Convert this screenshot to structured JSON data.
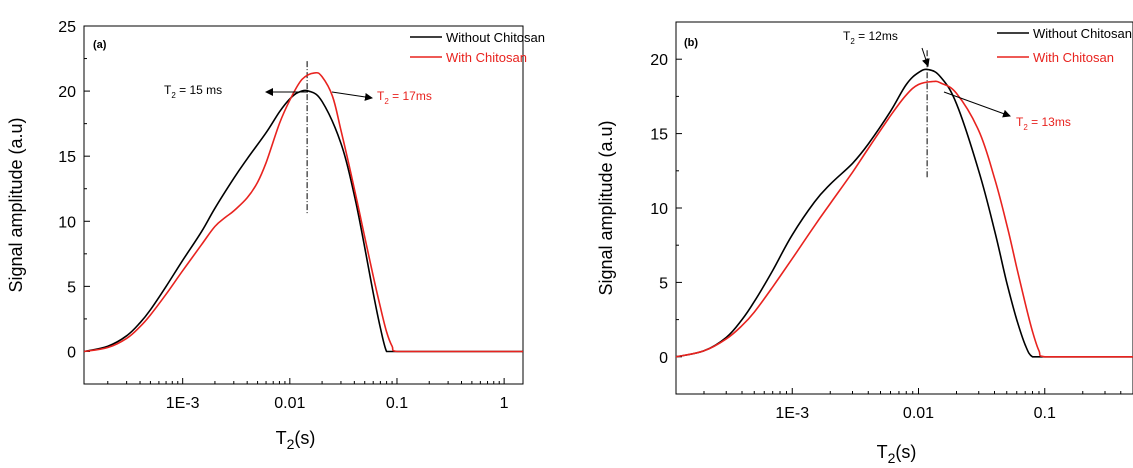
{
  "chart_data": [
    {
      "type": "line",
      "panel_label": "(a)",
      "xlabel": "T",
      "xlabel_sub": "2",
      "xlabel_suffix": "(s)",
      "ylabel": "Signal amplitude (a.u)",
      "x_scale": "log",
      "xlim": [
        0.00012,
        1.5
      ],
      "ylim": [
        -2.5,
        25
      ],
      "x_ticks": [
        {
          "value": 0.001,
          "label": "1E-3"
        },
        {
          "value": 0.01,
          "label": "0.01"
        },
        {
          "value": 0.1,
          "label": "0.1"
        },
        {
          "value": 1,
          "label": "1"
        }
      ],
      "y_ticks": [
        {
          "value": 0,
          "label": "0"
        },
        {
          "value": 5,
          "label": "5"
        },
        {
          "value": 10,
          "label": "10"
        },
        {
          "value": 15,
          "label": "15"
        },
        {
          "value": 20,
          "label": "20"
        },
        {
          "value": 25,
          "label": "25"
        }
      ],
      "legend_position": "top-right",
      "series": [
        {
          "name": "Without Chitosan",
          "color": "#000000",
          "x": [
            0.00012,
            0.0002,
            0.0003,
            0.0004,
            0.0005,
            0.0007,
            0.001,
            0.0015,
            0.002,
            0.003,
            0.004,
            0.006,
            0.008,
            0.01,
            0.012,
            0.015,
            0.02,
            0.03,
            0.04,
            0.05,
            0.06,
            0.07,
            0.08,
            0.09,
            0.1,
            0.2,
            0.5,
            1,
            1.5
          ],
          "y": [
            0,
            0.4,
            1.2,
            2.2,
            3.2,
            5.0,
            7.0,
            9.2,
            11.0,
            13.3,
            14.8,
            16.8,
            18.4,
            19.4,
            19.9,
            20.0,
            19.2,
            16.0,
            12.0,
            8.0,
            4.5,
            1.8,
            0.0,
            0.0,
            0.0,
            0.0,
            0.0,
            0.0,
            0.0
          ]
        },
        {
          "name": "With Chitosan",
          "color": "#e8231f",
          "x": [
            0.00012,
            0.0002,
            0.0003,
            0.0004,
            0.0005,
            0.0007,
            0.001,
            0.0015,
            0.002,
            0.0025,
            0.003,
            0.004,
            0.005,
            0.006,
            0.008,
            0.01,
            0.013,
            0.017,
            0.02,
            0.025,
            0.03,
            0.04,
            0.05,
            0.06,
            0.07,
            0.08,
            0.09,
            0.1,
            0.2,
            0.5,
            1,
            1.5
          ],
          "y": [
            0,
            0.3,
            1.0,
            1.9,
            2.8,
            4.4,
            6.2,
            8.2,
            9.6,
            10.3,
            10.8,
            11.8,
            13.0,
            14.5,
            17.5,
            19.3,
            20.9,
            21.4,
            21.1,
            19.6,
            17.0,
            12.5,
            8.8,
            5.8,
            3.4,
            1.5,
            0.4,
            0.0,
            0.0,
            0.0,
            0.0,
            0.0
          ]
        }
      ],
      "annotations": [
        {
          "text_main": "T",
          "sub": "2",
          "text_rest": " = 15 ms",
          "color": "#000000",
          "x": 0.015,
          "y": 20.0
        },
        {
          "text_main": "T",
          "sub": "2",
          "text_rest": " = 17ms",
          "color": "#e8231f",
          "x": 0.017,
          "y": 21.4
        }
      ]
    },
    {
      "type": "line",
      "panel_label": "(b)",
      "xlabel": "T",
      "xlabel_sub": "2",
      "xlabel_suffix": "(s)",
      "ylabel": "Signal amplitude (a.u)",
      "x_scale": "log",
      "xlim": [
        0.00012,
        0.5
      ],
      "ylim": [
        -2.5,
        22.5
      ],
      "x_ticks": [
        {
          "value": 0.001,
          "label": "1E-3"
        },
        {
          "value": 0.01,
          "label": "0.01"
        },
        {
          "value": 0.1,
          "label": "0.1"
        }
      ],
      "y_ticks": [
        {
          "value": 0,
          "label": "0"
        },
        {
          "value": 5,
          "label": "5"
        },
        {
          "value": 10,
          "label": "10"
        },
        {
          "value": 15,
          "label": "15"
        },
        {
          "value": 20,
          "label": "20"
        }
      ],
      "legend_position": "top-right",
      "series": [
        {
          "name": "Without Chitosan",
          "color": "#000000",
          "x": [
            0.00012,
            0.0002,
            0.0003,
            0.0004,
            0.0005,
            0.0007,
            0.001,
            0.0015,
            0.002,
            0.003,
            0.004,
            0.006,
            0.008,
            0.01,
            0.012,
            0.015,
            0.02,
            0.03,
            0.04,
            0.05,
            0.06,
            0.07,
            0.08,
            0.1,
            0.2,
            0.5
          ],
          "y": [
            0,
            0.4,
            1.3,
            2.5,
            3.7,
            5.8,
            8.2,
            10.4,
            11.6,
            13.0,
            14.3,
            16.5,
            18.3,
            19.1,
            19.3,
            18.8,
            17.0,
            12.5,
            8.5,
            5.0,
            2.5,
            0.8,
            0.0,
            0.0,
            0.0,
            0.0
          ]
        },
        {
          "name": "With Chitosan",
          "color": "#e8231f",
          "x": [
            0.00012,
            0.0002,
            0.0003,
            0.0004,
            0.0005,
            0.0007,
            0.001,
            0.0015,
            0.002,
            0.003,
            0.004,
            0.006,
            0.008,
            0.01,
            0.013,
            0.015,
            0.02,
            0.03,
            0.04,
            0.05,
            0.06,
            0.07,
            0.08,
            0.09,
            0.1,
            0.2,
            0.5
          ],
          "y": [
            0,
            0.4,
            1.2,
            2.1,
            3.0,
            4.7,
            6.6,
            8.8,
            10.3,
            12.4,
            14.0,
            16.2,
            17.6,
            18.3,
            18.5,
            18.4,
            17.7,
            15.2,
            12.0,
            8.9,
            6.0,
            3.6,
            1.7,
            0.4,
            0.0,
            0.0,
            0.0
          ]
        }
      ],
      "annotations": [
        {
          "text_main": "T",
          "sub": "2",
          "text_rest": " = 12ms",
          "color": "#000000",
          "x": 0.012,
          "y": 19.3
        },
        {
          "text_main": "T",
          "sub": "2",
          "text_rest": " = 13ms",
          "color": "#e8231f",
          "x": 0.013,
          "y": 18.5
        }
      ]
    }
  ]
}
